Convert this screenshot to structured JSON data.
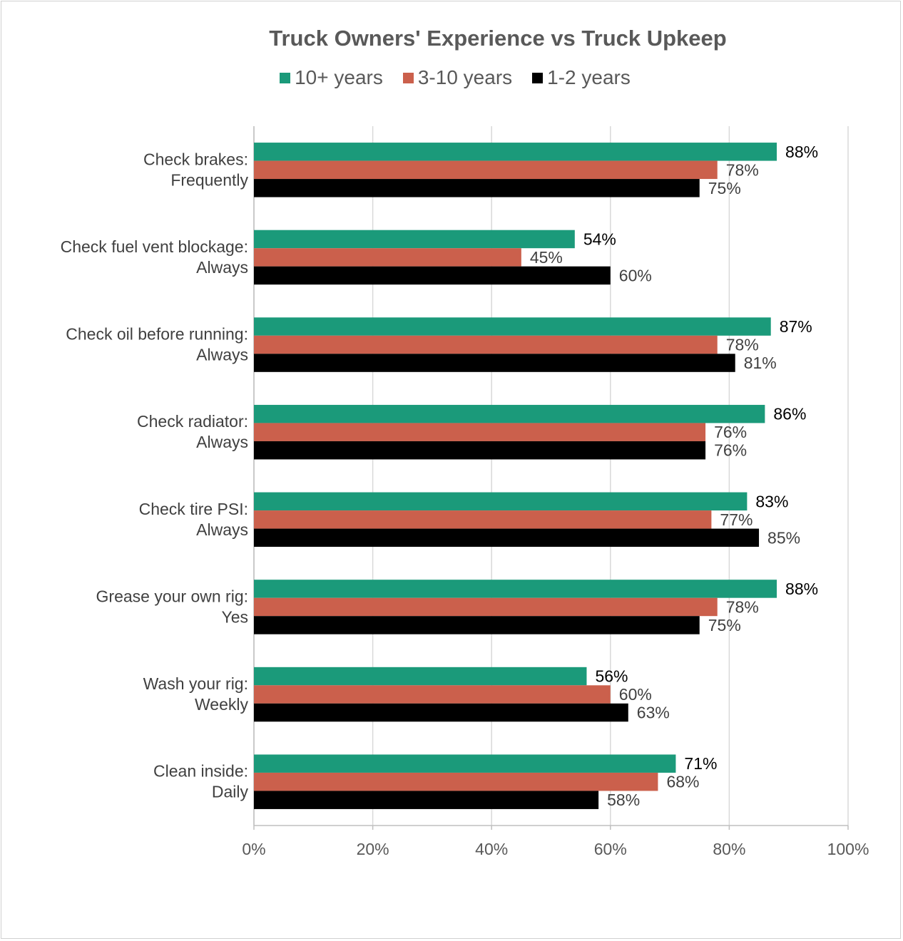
{
  "chart_data": {
    "type": "bar",
    "orientation": "horizontal",
    "title": "Truck Owners' Experience vs Truck Upkeep",
    "categories": [
      [
        "Check brakes:",
        "Frequently"
      ],
      [
        "Check fuel vent blockage:",
        "Always"
      ],
      [
        "Check oil before running:",
        "Always"
      ],
      [
        "Check radiator:",
        "Always"
      ],
      [
        "Check tire PSI:",
        "Always"
      ],
      [
        "Grease your own rig:",
        "Yes"
      ],
      [
        "Wash your rig:",
        "Weekly"
      ],
      [
        "Clean inside:",
        "Daily"
      ]
    ],
    "series": [
      {
        "name": "10+ years",
        "color": "#1b9a7a",
        "label_color": "#000000",
        "values": [
          88,
          54,
          87,
          86,
          83,
          88,
          56,
          71
        ]
      },
      {
        "name": "3-10 years",
        "color": "#cb604c",
        "label_color": "#404040",
        "values": [
          78,
          45,
          78,
          76,
          77,
          78,
          60,
          68
        ]
      },
      {
        "name": "1-2 years",
        "color": "#000000",
        "label_color": "#404040",
        "values": [
          75,
          60,
          81,
          76,
          85,
          75,
          63,
          58
        ]
      }
    ],
    "value_suffix": "%",
    "xlim": [
      0,
      100
    ],
    "xticks": [
      "0%",
      "20%",
      "40%",
      "60%",
      "80%",
      "100%"
    ],
    "grid": true,
    "legend": "top"
  }
}
